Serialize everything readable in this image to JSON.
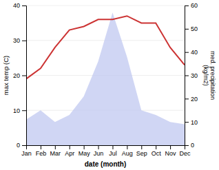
{
  "chart_data": {
    "type": "line",
    "categories": [
      "Jan",
      "Feb",
      "Mar",
      "Apr",
      "May",
      "Jun",
      "Jul",
      "Aug",
      "Sep",
      "Oct",
      "Nov",
      "Dec"
    ],
    "series": [
      {
        "type": "area",
        "axis": "y2",
        "color": "#c0c8f0",
        "values": [
          11,
          15,
          10,
          13,
          21,
          36,
          57,
          38,
          15,
          13,
          10,
          9
        ]
      },
      {
        "type": "line",
        "color": "#cc3333",
        "values": [
          19,
          22,
          28,
          33,
          34,
          36,
          36,
          37,
          35,
          35,
          28,
          23
        ]
      }
    ],
    "xlabel": "date (month)",
    "ylabel": "max temp (C)",
    "y2label": "med. precipitation\n(kg/m2)",
    "ylim": [
      0,
      40
    ],
    "yticks": [
      0,
      10,
      20,
      30,
      40
    ],
    "y2lim": [
      0,
      60
    ],
    "y2ticks": [
      0,
      10,
      20,
      30,
      40,
      50,
      60
    ],
    "grid": true
  }
}
